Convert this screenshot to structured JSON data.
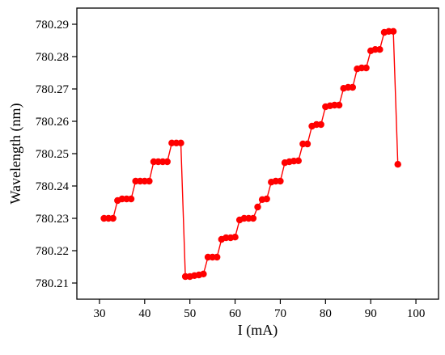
{
  "chart_data": {
    "type": "line",
    "title": "",
    "xlabel": "I (mA)",
    "ylabel": "Wavelength (nm)",
    "xlim": [
      25,
      105
    ],
    "ylim": [
      780.205,
      780.295
    ],
    "xticks": [
      "30",
      "40",
      "50",
      "60",
      "70",
      "80",
      "90",
      "100"
    ],
    "xtick_values": [
      30,
      40,
      50,
      60,
      70,
      80,
      90,
      100
    ],
    "yticks": [
      "780.21",
      "780.22",
      "780.23",
      "780.24",
      "780.25",
      "780.26",
      "780.27",
      "780.28",
      "780.29"
    ],
    "ytick_values": [
      780.21,
      780.22,
      780.23,
      780.24,
      780.25,
      780.26,
      780.27,
      780.28,
      780.29
    ],
    "grid": false,
    "color": "#ff0000",
    "series": [
      {
        "x": [
          31,
          32,
          33,
          34,
          35,
          36,
          37,
          38,
          39,
          40,
          41,
          42,
          43,
          44,
          45,
          46,
          47,
          48,
          49,
          50,
          51,
          52,
          53,
          54,
          55,
          56,
          57,
          58,
          59,
          60,
          61,
          62,
          63,
          64,
          65,
          66,
          67,
          68,
          69,
          70,
          71,
          72,
          73,
          74,
          75,
          76,
          77,
          78,
          79,
          80,
          81,
          82,
          83,
          84,
          85,
          86,
          87,
          88,
          89,
          90,
          91,
          92,
          93,
          94,
          95,
          96
        ],
        "y": [
          780.23,
          780.23,
          780.23,
          780.2355,
          780.236,
          780.236,
          780.236,
          780.2415,
          780.2415,
          780.2415,
          780.2415,
          780.2475,
          780.2475,
          780.2475,
          780.2475,
          780.2533,
          780.2533,
          780.2533,
          780.212,
          780.212,
          780.2123,
          780.2125,
          780.2128,
          780.218,
          780.218,
          780.218,
          780.2235,
          780.224,
          780.224,
          780.2242,
          780.2295,
          780.23,
          780.23,
          780.23,
          780.2335,
          780.2358,
          780.236,
          780.2412,
          780.2415,
          780.2415,
          780.2472,
          780.2475,
          780.2477,
          780.2478,
          780.253,
          780.253,
          780.2585,
          780.259,
          780.259,
          780.2645,
          780.2648,
          780.265,
          780.265,
          780.2702,
          780.2705,
          780.2705,
          780.2762,
          780.2765,
          780.2765,
          780.2818,
          780.2822,
          780.2822,
          780.2875,
          780.2878,
          780.2878,
          780.2467
        ]
      }
    ]
  }
}
